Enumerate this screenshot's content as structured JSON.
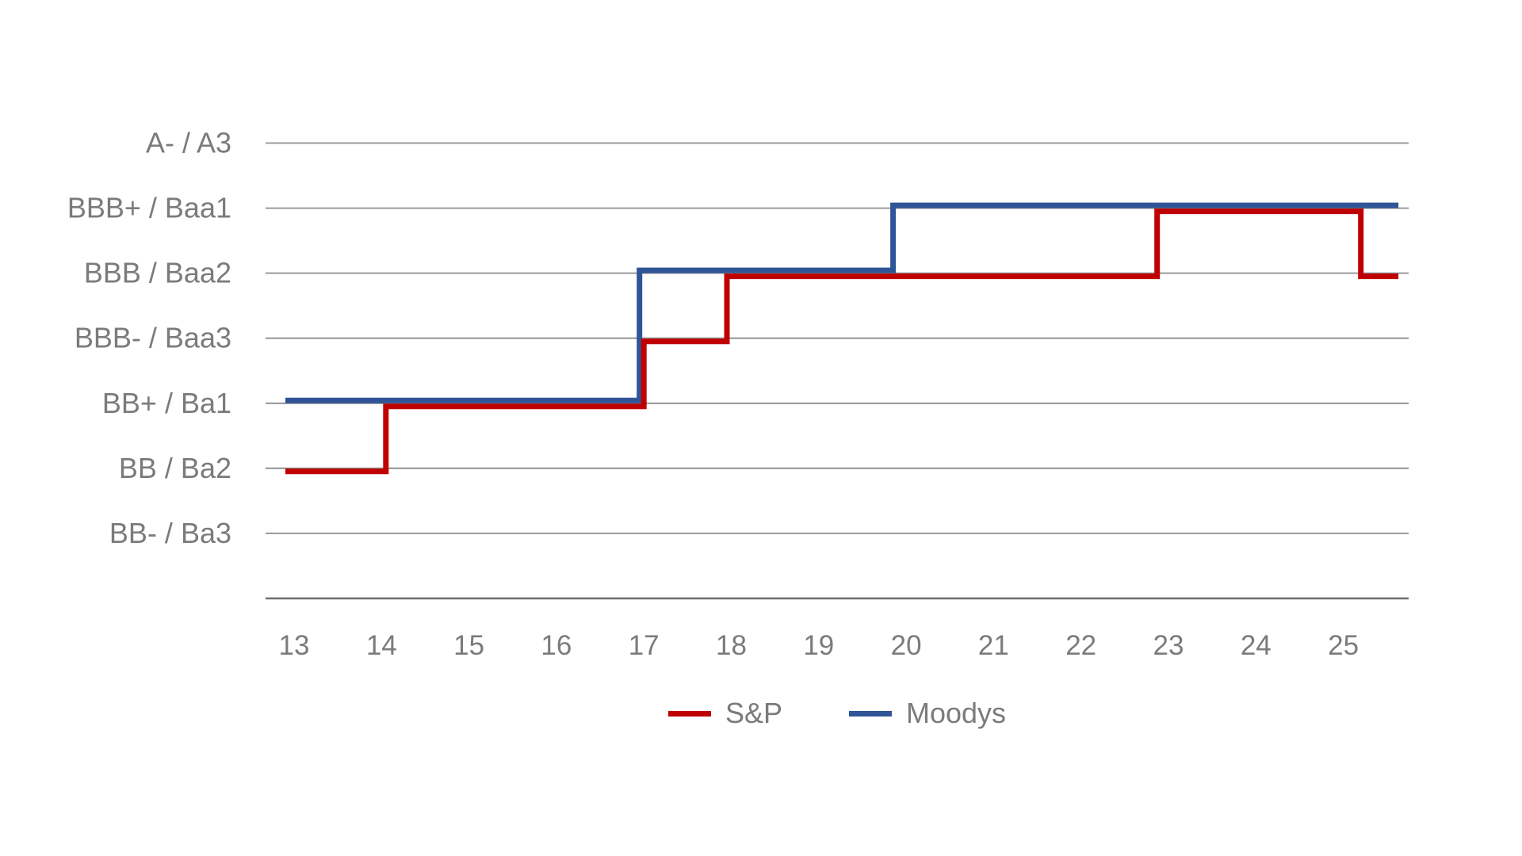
{
  "chart_data": {
    "type": "line",
    "subtype": "step",
    "title": "",
    "xlabel": "",
    "ylabel": "",
    "grid": {
      "horizontal": true,
      "vertical": false
    },
    "x_ticks": [
      "13",
      "14",
      "15",
      "16",
      "17",
      "18",
      "19",
      "20",
      "21",
      "22",
      "23",
      "24",
      "25"
    ],
    "x_domain": [
      12.9,
      25.63
    ],
    "y_labels_top_to_bottom": [
      "A- / A3",
      "BBB+ / Baa1",
      "BBB / Baa2",
      "BBB- / Baa3",
      "BB+ / Ba1",
      "BB / Ba2",
      "BB- / Ba3"
    ],
    "series": [
      {
        "name": "S&P",
        "color": "#C00000",
        "x_end": 25.63,
        "points": [
          {
            "x": 12.9,
            "rating": "BB / Ba2"
          },
          {
            "x": 14.05,
            "rating": "BB+ / Ba1"
          },
          {
            "x": 17.0,
            "rating": "BBB- / Baa3"
          },
          {
            "x": 17.95,
            "rating": "BBB / Baa2"
          },
          {
            "x": 22.87,
            "rating": "BBB+ / Baa1"
          },
          {
            "x": 25.2,
            "rating": "BBB / Baa2"
          }
        ]
      },
      {
        "name": "Moodys",
        "color": "#2F5597",
        "x_end": 25.63,
        "points": [
          {
            "x": 12.9,
            "rating": "BB+ / Ba1"
          },
          {
            "x": 16.95,
            "rating": "BBB / Baa2"
          },
          {
            "x": 19.85,
            "rating": "BBB+ / Baa1"
          }
        ]
      }
    ],
    "legend": {
      "position": "bottom-center",
      "entries": [
        "S&P",
        "Moodys"
      ]
    },
    "colors": {
      "gridline": "#8C8C8C",
      "axis_line": "#6E6E6E",
      "label_text": "#7B7B7B"
    }
  }
}
